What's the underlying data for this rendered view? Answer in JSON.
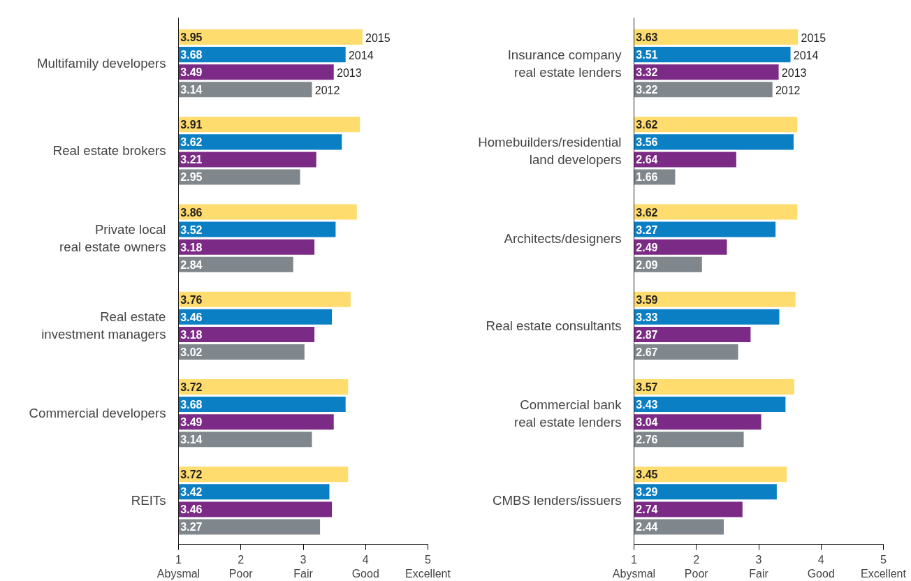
{
  "chart_data": [
    {
      "type": "bar",
      "orientation": "horizontal",
      "categories": [
        "Multifamily developers",
        "Real estate brokers",
        "Private local\nreal estate owners",
        "Real estate\ninvestment managers",
        "Commercial developers",
        "REITs"
      ],
      "series": [
        {
          "name": "2015",
          "color": "#fedc6e",
          "values": [
            3.95,
            3.91,
            3.86,
            3.76,
            3.72,
            3.72
          ]
        },
        {
          "name": "2014",
          "color": "#0a7fc4",
          "values": [
            3.68,
            3.62,
            3.52,
            3.46,
            3.68,
            3.42
          ]
        },
        {
          "name": "2013",
          "color": "#7b2a85",
          "values": [
            3.49,
            3.21,
            3.18,
            3.18,
            3.49,
            3.46
          ]
        },
        {
          "name": "2012",
          "color": "#7f868c",
          "values": [
            3.14,
            2.95,
            2.84,
            3.02,
            3.14,
            3.27
          ]
        }
      ],
      "xlim": [
        1,
        5
      ],
      "xticks": [
        {
          "value": 1,
          "label": "1\nAbysmal"
        },
        {
          "value": 2,
          "label": "2\nPoor"
        },
        {
          "value": 3,
          "label": "3\nFair"
        },
        {
          "value": 4,
          "label": "4\nGood"
        },
        {
          "value": 5,
          "label": "5\nExcellent"
        }
      ],
      "data_labels": true
    },
    {
      "type": "bar",
      "orientation": "horizontal",
      "categories": [
        "Insurance company\nreal estate lenders",
        "Homebuilders/residential\nland developers",
        "Architects/designers",
        "Real estate consultants",
        "Commercial bank\nreal estate lenders",
        "CMBS lenders/issuers"
      ],
      "series": [
        {
          "name": "2015",
          "color": "#fedc6e",
          "values": [
            3.63,
            3.62,
            3.62,
            3.59,
            3.57,
            3.45
          ]
        },
        {
          "name": "2014",
          "color": "#0a7fc4",
          "values": [
            3.51,
            3.56,
            3.27,
            3.33,
            3.43,
            3.29
          ]
        },
        {
          "name": "2013",
          "color": "#7b2a85",
          "values": [
            3.32,
            2.64,
            2.49,
            2.87,
            3.04,
            2.74
          ]
        },
        {
          "name": "2012",
          "color": "#7f868c",
          "values": [
            3.22,
            1.66,
            2.09,
            2.67,
            2.76,
            2.44
          ]
        }
      ],
      "xlim": [
        1,
        5
      ],
      "xticks": [
        {
          "value": 1,
          "label": "1\nAbysmal"
        },
        {
          "value": 2,
          "label": "2\nPoor"
        },
        {
          "value": 3,
          "label": "3\nFair"
        },
        {
          "value": 4,
          "label": "4\nGood"
        },
        {
          "value": 5,
          "label": "5\nExcellent"
        }
      ],
      "data_labels": true
    }
  ]
}
